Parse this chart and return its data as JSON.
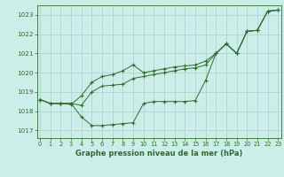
{
  "title": "Graphe pression niveau de la mer (hPa)",
  "background_color": "#cceee8",
  "grid_color": "#aacccc",
  "line_color": "#2d6e2d",
  "xlim": [
    -0.3,
    23.3
  ],
  "ylim": [
    1016.6,
    1023.5
  ],
  "yticks": [
    1017,
    1018,
    1019,
    1020,
    1021,
    1022,
    1023
  ],
  "xticks": [
    0,
    1,
    2,
    3,
    4,
    5,
    6,
    7,
    8,
    9,
    10,
    11,
    12,
    13,
    14,
    15,
    16,
    17,
    18,
    19,
    20,
    21,
    22,
    23
  ],
  "series1": [
    1018.6,
    1018.4,
    1018.4,
    1018.4,
    1017.7,
    1017.25,
    1017.25,
    1017.3,
    1017.35,
    1017.4,
    1018.4,
    1018.5,
    1018.5,
    1018.5,
    1018.5,
    1018.55,
    1019.6,
    1021.0,
    1021.5,
    1021.0,
    1022.15,
    1022.2,
    1023.2,
    1023.25
  ],
  "series2": [
    1018.6,
    1018.4,
    1018.4,
    1018.4,
    1018.3,
    1019.0,
    1019.3,
    1019.35,
    1019.4,
    1019.7,
    1019.8,
    1019.9,
    1020.0,
    1020.1,
    1020.2,
    1020.25,
    1020.4,
    1021.0,
    1021.5,
    1021.0,
    1022.15,
    1022.2,
    1023.2,
    1023.25
  ],
  "series3": [
    1018.6,
    1018.4,
    1018.4,
    1018.35,
    1018.8,
    1019.5,
    1019.8,
    1019.9,
    1020.1,
    1020.4,
    1020.0,
    1020.1,
    1020.2,
    1020.3,
    1020.35,
    1020.4,
    1020.6,
    1021.0,
    1021.5,
    1021.0,
    1022.15,
    1022.2,
    1023.2,
    1023.25
  ]
}
